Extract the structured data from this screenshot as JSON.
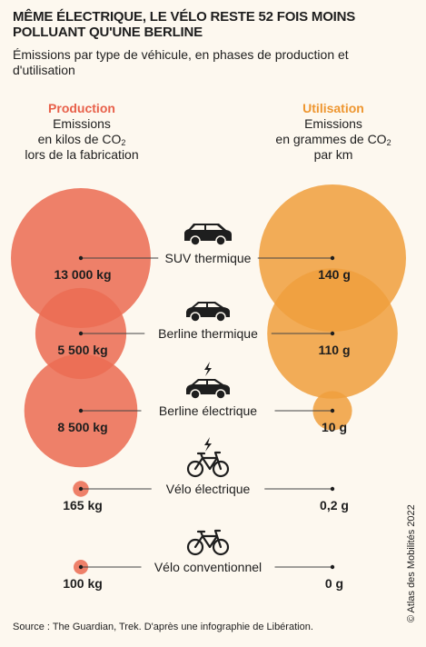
{
  "header": {
    "title": "Même électrique, le vélo reste 52 fois moins polluant qu'une berline",
    "subtitle": "Émissions par type de véhicule, en phases de production et d'utilisation"
  },
  "columns": {
    "production": {
      "title": "Production",
      "line1": "Emissions",
      "line2_prefix": "en kilos de CO",
      "line2_sub": "2",
      "line3": "lors de la fabrication"
    },
    "utilisation": {
      "title": "Utilisation",
      "line1": "Emissions",
      "line2_prefix": "en grammes de CO",
      "line2_sub": "2",
      "line3": "par km"
    }
  },
  "chart_data": {
    "type": "bubble",
    "title": "Même électrique, le vélo reste 52 fois moins polluant qu'une berline",
    "subtitle": "Émissions par type de véhicule, en phases de production et d'utilisation",
    "series": [
      {
        "name": "Production",
        "unit": "kg CO2",
        "color": "#eb6c53"
      },
      {
        "name": "Utilisation",
        "unit": "g CO2 / km",
        "color": "#f0a03e"
      }
    ],
    "rows": [
      {
        "vehicle": "SUV thermique",
        "icon": "suv-icon",
        "production": 13000,
        "production_label": "13 000 kg",
        "utilisation": 140,
        "utilisation_label": "140 g"
      },
      {
        "vehicle": "Berline thermique",
        "icon": "sedan-icon",
        "production": 5500,
        "production_label": "5 500 kg",
        "utilisation": 110,
        "utilisation_label": "110 g"
      },
      {
        "vehicle": "Berline électrique",
        "icon": "electric-car-icon",
        "production": 8500,
        "production_label": "8 500 kg",
        "utilisation": 10,
        "utilisation_label": "10 g"
      },
      {
        "vehicle": "Vélo électrique",
        "icon": "electric-bike-icon",
        "production": 165,
        "production_label": "165 kg",
        "utilisation": 0.2,
        "utilisation_label": "0,2 g"
      },
      {
        "vehicle": "Vélo conventionnel",
        "icon": "bike-icon",
        "production": 100,
        "production_label": "100 kg",
        "utilisation": 0,
        "utilisation_label": "0 g"
      }
    ]
  },
  "footer": {
    "source": "Source : The Guardian, Trek. D'après une infographie de Libération.",
    "credit": "© Atlas des Mobilités 2022"
  }
}
